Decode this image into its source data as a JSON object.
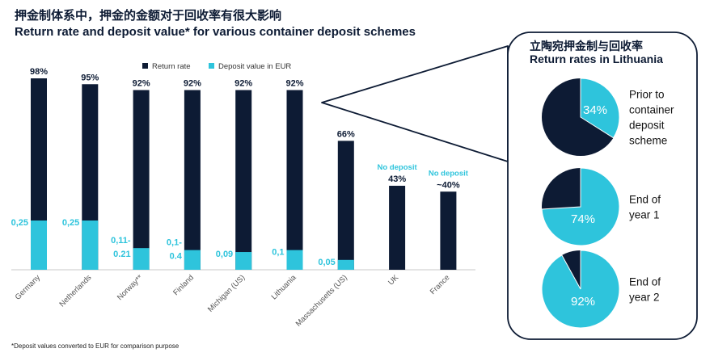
{
  "header": {
    "title_cn": "押金制体系中，押金的金额对于回收率有很大影响",
    "title_en": "Return rate and deposit value* for various container deposit schemes"
  },
  "footnote": "*Deposit values converted to EUR for comparison purpose",
  "colors": {
    "return_rate": "#0d1b34",
    "deposit": "#2ec4dc"
  },
  "chart_data": {
    "type": "bar",
    "categories": [
      "Germany",
      "Netherlands",
      "Norway**",
      "Finland",
      "Michigan (US)",
      "Lithuania",
      "Massachusetts (US)",
      "UK",
      "France"
    ],
    "series": [
      {
        "name": "Return rate",
        "values": [
          98,
          95,
          92,
          92,
          92,
          92,
          66,
          43,
          40
        ],
        "labels": [
          "98%",
          "95%",
          "92%",
          "92%",
          "92%",
          "92%",
          "66%",
          "43%",
          "~40%"
        ]
      },
      {
        "name": "Deposit value in EUR",
        "values": [
          0.25,
          0.25,
          0.11,
          0.1,
          0.09,
          0.1,
          0.05,
          null,
          null
        ],
        "labels": [
          "0,25",
          "0,25",
          "0,11-\n0.21",
          "0,1-\n0.4",
          "0,09",
          "0,1",
          "0,05",
          "",
          ""
        ]
      }
    ],
    "annotations": [
      "",
      "",
      "",
      "",
      "",
      "",
      "",
      "No deposit",
      "No deposit"
    ],
    "ylim": [
      0,
      100
    ],
    "legend_position": "top-center"
  },
  "panel": {
    "title_cn": "立陶宛押金制与回收率",
    "title_en": "Return rates in Lithuania",
    "pies": [
      {
        "value": 34,
        "label": "34%",
        "caption": "Prior to\ncontainer\ndeposit\nscheme"
      },
      {
        "value": 74,
        "label": "74%",
        "caption": "End of\nyear 1"
      },
      {
        "value": 92,
        "label": "92%",
        "caption": "End of\nyear 2"
      }
    ]
  }
}
